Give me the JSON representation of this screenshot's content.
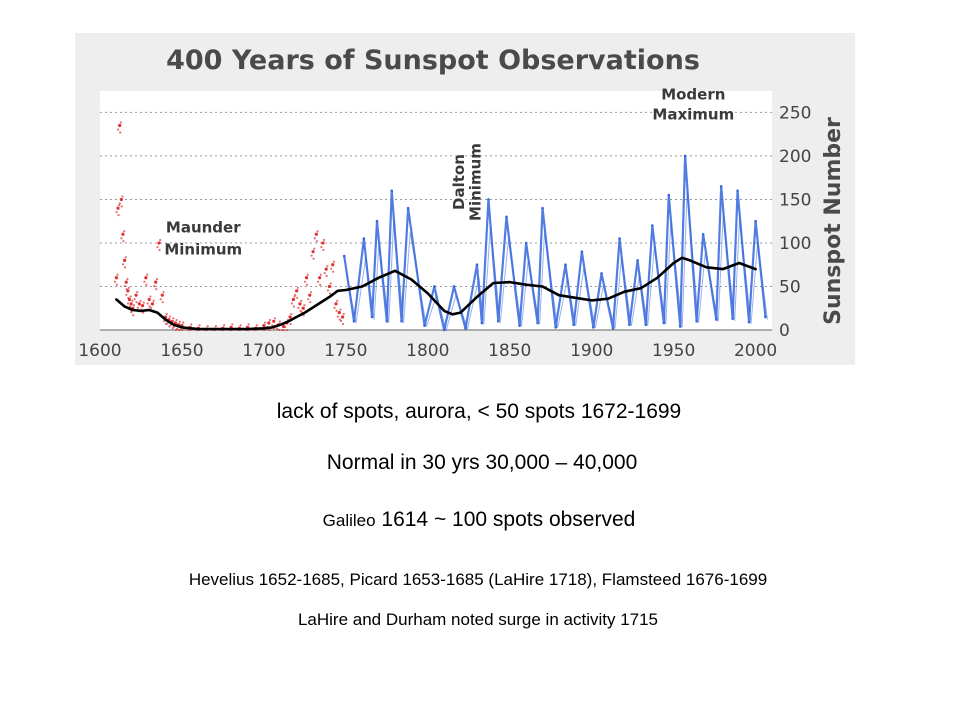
{
  "chart_data": {
    "type": "scatter",
    "title": "400 Years of Sunspot Observations",
    "ylabel": "Sunspot Number",
    "xlabel": "",
    "xlim": [
      1600,
      2010
    ],
    "ylim": [
      0,
      270
    ],
    "x_ticks": [
      "1600",
      "1650",
      "1700",
      "1750",
      "1800",
      "1850",
      "1900",
      "1950",
      "2000"
    ],
    "y_ticks": [
      "0",
      "50",
      "100",
      "150",
      "200",
      "250"
    ],
    "grid": true,
    "annotations": [
      {
        "text": "Maunder",
        "x": 1663,
        "y": 112
      },
      {
        "text": "Minimum",
        "x": 1663,
        "y": 87
      },
      {
        "text": "Dalton",
        "x": 1822,
        "y": 170
      },
      {
        "text": "Minimum",
        "x": 1832,
        "y": 170
      },
      {
        "text": "Modern",
        "x": 1962,
        "y": 265
      },
      {
        "text": "Maximum",
        "x": 1962,
        "y": 242
      }
    ],
    "series": [
      {
        "kind": "red-points",
        "color": "#e03030",
        "x": [
          1610,
          1611,
          1612,
          1613,
          1614,
          1615,
          1616,
          1617,
          1618,
          1619,
          1620,
          1622,
          1624,
          1626,
          1628,
          1630,
          1632,
          1634,
          1636,
          1638,
          1640,
          1642,
          1644,
          1646,
          1648,
          1650,
          1655,
          1660,
          1665,
          1670,
          1675,
          1680,
          1685,
          1690,
          1695,
          1700,
          1703,
          1706,
          1709,
          1712,
          1714,
          1716,
          1718,
          1720,
          1722,
          1724,
          1726,
          1728,
          1730,
          1732,
          1734,
          1736,
          1738,
          1740,
          1742,
          1744,
          1746,
          1748
        ],
        "y": [
          60,
          140,
          235,
          150,
          110,
          80,
          55,
          45,
          35,
          30,
          25,
          40,
          30,
          28,
          60,
          35,
          30,
          55,
          100,
          40,
          15,
          12,
          10,
          8,
          6,
          5,
          3,
          2,
          1,
          1,
          2,
          3,
          2,
          3,
          2,
          5,
          8,
          10,
          6,
          4,
          8,
          15,
          35,
          45,
          30,
          25,
          60,
          40,
          90,
          110,
          60,
          100,
          70,
          50,
          75,
          30,
          20,
          15
        ]
      },
      {
        "kind": "blue-cycles",
        "color": "#3366dd",
        "x": [
          1749,
          1755,
          1761,
          1766,
          1769,
          1775,
          1778,
          1784,
          1788,
          1798,
          1804,
          1810,
          1816,
          1823,
          1830,
          1833,
          1837,
          1843,
          1848,
          1856,
          1860,
          1867,
          1870,
          1878,
          1884,
          1889,
          1894,
          1901,
          1906,
          1913,
          1917,
          1923,
          1928,
          1933,
          1937,
          1944,
          1947,
          1954,
          1957,
          1964,
          1968,
          1976,
          1979,
          1986,
          1989,
          1996,
          2000,
          2006
        ],
        "y": [
          85,
          10,
          105,
          15,
          125,
          10,
          160,
          10,
          140,
          5,
          50,
          0,
          50,
          2,
          75,
          8,
          150,
          10,
          130,
          5,
          100,
          8,
          140,
          3,
          75,
          6,
          90,
          3,
          65,
          2,
          105,
          6,
          80,
          6,
          120,
          8,
          155,
          4,
          200,
          10,
          110,
          12,
          165,
          13,
          160,
          9,
          125,
          15
        ]
      },
      {
        "kind": "smoothed-mean",
        "color": "#000000",
        "x": [
          1610,
          1615,
          1620,
          1625,
          1630,
          1635,
          1640,
          1645,
          1650,
          1660,
          1670,
          1680,
          1690,
          1700,
          1705,
          1710,
          1715,
          1720,
          1725,
          1730,
          1735,
          1740,
          1745,
          1750,
          1760,
          1770,
          1780,
          1790,
          1800,
          1810,
          1815,
          1820,
          1830,
          1840,
          1850,
          1860,
          1870,
          1880,
          1890,
          1900,
          1910,
          1920,
          1930,
          1940,
          1950,
          1955,
          1960,
          1970,
          1980,
          1990,
          2000
        ],
        "y": [
          35,
          27,
          23,
          22,
          23,
          20,
          12,
          6,
          3,
          1,
          1,
          1,
          1,
          2,
          3,
          6,
          10,
          15,
          20,
          26,
          32,
          38,
          45,
          46,
          50,
          60,
          68,
          58,
          42,
          22,
          18,
          20,
          38,
          54,
          55,
          52,
          50,
          40,
          37,
          34,
          36,
          44,
          48,
          60,
          77,
          83,
          80,
          72,
          70,
          77,
          70
        ]
      }
    ]
  },
  "notes": {
    "line1": "lack of spots, aurora, < 50 spots   1672-1699",
    "line2": "Normal in 30 yrs  30,000 – 40,000",
    "line3_word": "Galileo",
    "line3_rest": " 1614 ~ 100 spots observed",
    "line4": "Hevelius 1652-1685, Picard 1653-1685 (LaHire 1718), Flamsteed 1676-1699",
    "line5": "LaHire and Durham noted surge in activity 1715"
  }
}
